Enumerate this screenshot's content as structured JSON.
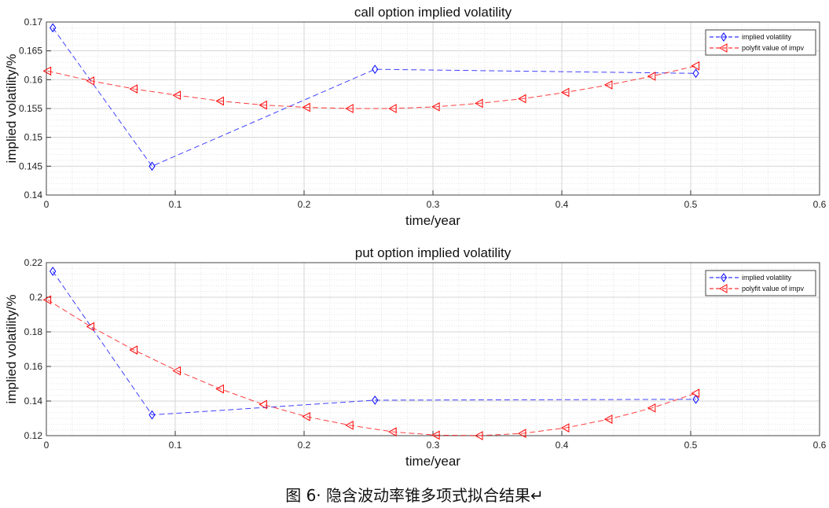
{
  "chart_data": [
    {
      "type": "line",
      "title": "call option implied volatility",
      "xlabel": "time/year",
      "ylabel": "implied volatility/%",
      "xlim": [
        0,
        0.6
      ],
      "ylim": [
        0.14,
        0.17
      ],
      "xticks": [
        0,
        0.1,
        0.2,
        0.3,
        0.4,
        0.5,
        0.6
      ],
      "yticks": [
        0.14,
        0.145,
        0.15,
        0.155,
        0.16,
        0.165,
        0.17
      ],
      "xtick_labels": [
        "0",
        "0.1",
        "0.2",
        "0.3",
        "0.4",
        "0.5",
        "0.6"
      ],
      "ytick_labels": [
        "0.14",
        "0.145",
        "0.15",
        "0.155",
        "0.16",
        "0.165",
        "0.17"
      ],
      "grid": true,
      "legend_position": "top-right",
      "series": [
        {
          "name": "implied volatility",
          "color": "#0000ff",
          "marker": "diamond",
          "x": [
            0.005,
            0.082,
            0.255,
            0.504
          ],
          "y": [
            0.169,
            0.145,
            0.1618,
            0.1611
          ]
        },
        {
          "name": "polyfit value of impv",
          "color": "#ff0000",
          "marker": "triangle-left",
          "x": [
            0.001,
            0.0345,
            0.068,
            0.1015,
            0.135,
            0.1685,
            0.202,
            0.2355,
            0.269,
            0.3025,
            0.336,
            0.3695,
            0.403,
            0.4365,
            0.47,
            0.504
          ],
          "y": [
            0.1615,
            0.1598,
            0.1584,
            0.1573,
            0.1563,
            0.1556,
            0.1552,
            0.155,
            0.155,
            0.1553,
            0.1559,
            0.1567,
            0.1578,
            0.1591,
            0.1606,
            0.1624
          ]
        }
      ]
    },
    {
      "type": "line",
      "title": "put option implied volatility",
      "xlabel": "time/year",
      "ylabel": "implied volatility/%",
      "xlim": [
        0,
        0.6
      ],
      "ylim": [
        0.12,
        0.22
      ],
      "xticks": [
        0,
        0.1,
        0.2,
        0.3,
        0.4,
        0.5,
        0.6
      ],
      "yticks": [
        0.12,
        0.14,
        0.16,
        0.18,
        0.2,
        0.22
      ],
      "xtick_labels": [
        "0",
        "0.1",
        "0.2",
        "0.3",
        "0.4",
        "0.5",
        "0.6"
      ],
      "ytick_labels": [
        "0.12",
        "0.14",
        "0.16",
        "0.18",
        "0.2",
        "0.22"
      ],
      "grid": true,
      "legend_position": "top-right",
      "series": [
        {
          "name": "implied volatility",
          "color": "#0000ff",
          "marker": "diamond",
          "x": [
            0.005,
            0.082,
            0.255,
            0.504
          ],
          "y": [
            0.215,
            0.132,
            0.1405,
            0.141
          ]
        },
        {
          "name": "polyfit value of impv",
          "color": "#ff0000",
          "marker": "triangle-left",
          "x": [
            0.001,
            0.0345,
            0.068,
            0.1015,
            0.135,
            0.1685,
            0.202,
            0.2355,
            0.269,
            0.3025,
            0.336,
            0.3695,
            0.403,
            0.4365,
            0.47,
            0.504
          ],
          "y": [
            0.1985,
            0.183,
            0.1695,
            0.1575,
            0.147,
            0.138,
            0.131,
            0.126,
            0.1222,
            0.1203,
            0.12,
            0.1213,
            0.1245,
            0.1295,
            0.136,
            0.1445
          ]
        }
      ]
    }
  ],
  "caption": "图 6· 隐含波动率锥多项式拟合结果↵"
}
